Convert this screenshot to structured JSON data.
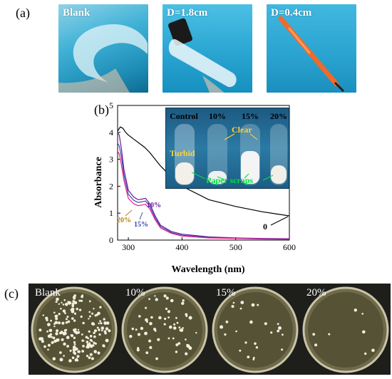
{
  "panels": {
    "a": {
      "label": "(a)",
      "photos": [
        {
          "caption": "Blank"
        },
        {
          "caption": "D=1.8cm"
        },
        {
          "caption": "D=0.4cm"
        }
      ]
    },
    "b": {
      "label": "(b)",
      "inset": {
        "tube_labels": [
          "Control",
          "10%",
          "15%",
          "20%"
        ],
        "turbid": "Turbid",
        "clear": "Clear",
        "paper_scraps": "Paper scraps"
      },
      "curve_labels": {
        "zero": "0",
        "ten": "10%",
        "fifteen": "15%",
        "twenty": "20%"
      }
    },
    "c": {
      "label": "(c)",
      "dishes": [
        {
          "caption": "Blank",
          "colonies": 180
        },
        {
          "caption": "10%",
          "colonies": 60
        },
        {
          "caption": "15%",
          "colonies": 25
        },
        {
          "caption": "20%",
          "colonies": 8
        }
      ]
    }
  },
  "chart_data": {
    "type": "line",
    "xlabel": "Wavelength (nm)",
    "ylabel": "Absorbance",
    "xlim": [
      280,
      600
    ],
    "ylim": [
      0,
      5
    ],
    "xticks": [
      300,
      400,
      500,
      600
    ],
    "yticks": [
      0,
      1,
      2,
      3,
      4,
      5
    ],
    "series": [
      {
        "name": "0",
        "color": "#000000",
        "x": [
          280,
          285,
          290,
          295,
          300,
          310,
          320,
          330,
          340,
          350,
          360,
          380,
          400,
          450,
          500,
          550,
          600
        ],
        "y": [
          4.05,
          4.2,
          4.15,
          4.0,
          3.9,
          3.75,
          3.6,
          3.45,
          3.25,
          3.0,
          2.75,
          2.35,
          2.0,
          1.5,
          1.25,
          1.05,
          0.9
        ]
      },
      {
        "name": "10%",
        "color": "#6a1b9a",
        "x": [
          280,
          283,
          287,
          292,
          300,
          310,
          318,
          325,
          332,
          340,
          350,
          360,
          380,
          400,
          450,
          500,
          550,
          600
        ],
        "y": [
          4.0,
          3.9,
          3.4,
          2.6,
          1.85,
          1.6,
          1.5,
          1.52,
          1.55,
          1.35,
          0.9,
          0.55,
          0.32,
          0.22,
          0.12,
          0.08,
          0.06,
          0.05
        ]
      },
      {
        "name": "15%",
        "color": "#3949ab",
        "x": [
          280,
          283,
          287,
          292,
          300,
          310,
          318,
          325,
          332,
          340,
          350,
          360,
          380,
          400,
          450,
          500,
          550,
          600
        ],
        "y": [
          3.6,
          3.5,
          3.1,
          2.4,
          1.7,
          1.48,
          1.4,
          1.42,
          1.45,
          1.25,
          0.82,
          0.5,
          0.28,
          0.18,
          0.1,
          0.07,
          0.05,
          0.04
        ]
      },
      {
        "name": "20%",
        "color": "#e91e8c",
        "x": [
          280,
          283,
          287,
          292,
          300,
          310,
          318,
          325,
          332,
          340,
          350,
          360,
          380,
          400,
          450,
          500,
          550,
          600
        ],
        "y": [
          3.3,
          3.2,
          2.8,
          2.2,
          1.55,
          1.35,
          1.28,
          1.3,
          1.33,
          1.15,
          0.75,
          0.45,
          0.25,
          0.15,
          0.08,
          0.06,
          0.04,
          0.03
        ]
      }
    ]
  }
}
